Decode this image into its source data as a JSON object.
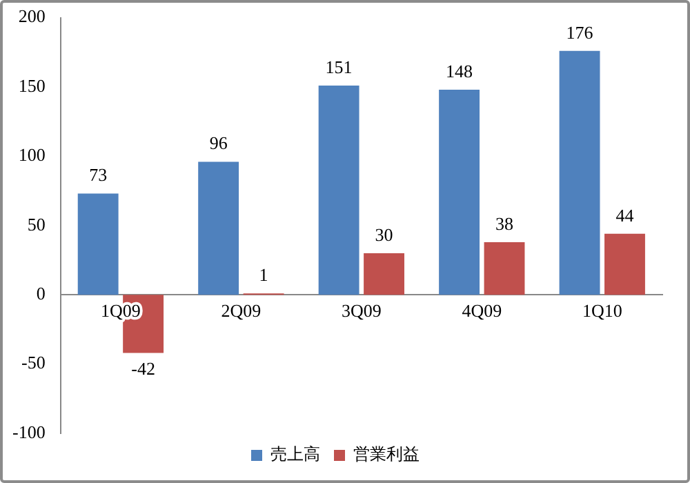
{
  "chart_data": {
    "type": "bar",
    "categories": [
      "1Q09",
      "2Q09",
      "3Q09",
      "4Q09",
      "1Q10"
    ],
    "series": [
      {
        "name": "売上高",
        "color": "#4f81bd",
        "values": [
          73,
          96,
          151,
          148,
          176
        ]
      },
      {
        "name": "営業利益",
        "color": "#c0504d",
        "values": [
          -42,
          1,
          30,
          38,
          44
        ]
      }
    ],
    "ylim": [
      -100,
      200
    ],
    "yticks": [
      -100,
      -50,
      0,
      50,
      100,
      150,
      200
    ],
    "grid": false,
    "legend": "bottom",
    "data_labels": true
  }
}
